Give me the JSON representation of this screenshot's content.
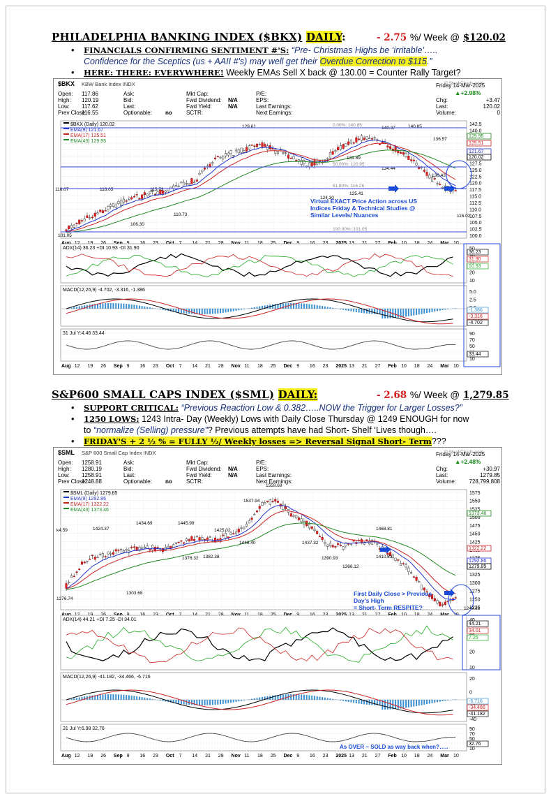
{
  "section1": {
    "title": "PHILADELPHIA BANKING INDEX ($BKX)",
    "title_tag": "DAILY",
    "title_colon": ":",
    "change": "- 2.75",
    "change_unit": "%/ Week @",
    "price": "$120.02",
    "bullets": [
      {
        "tag": "FINANCIALS CONFIRMING SENTIMENT #'S:",
        "text_pre": " ",
        "quote": "“Pre- Christmas Highs be ‘irritable’…..",
        "line2_pre": "Confidence for the Sceptics (us + AAII #'s) may well get their ",
        "line2_hl": "Overdue Correction to $115",
        "line2_post": ".”"
      },
      {
        "tag": "HERE: THERE: EVERYWHERE!",
        "text": " Weekly EMAs Sell X back @ 130.00 = Counter Rally Target?"
      }
    ],
    "chart": {
      "symbol": "$BKX",
      "name": "KBW Bank Index INDX",
      "date": "Friday 14-Mar-2025",
      "pct": "▲+2.98%",
      "stats_left": [
        [
          "Open:",
          "117.86"
        ],
        [
          "High:",
          "120.19"
        ],
        [
          "Low:",
          "117.62"
        ],
        [
          "Prev Close:",
          "116.55"
        ]
      ],
      "stats_mid_labels": [
        "Ask:",
        "Bid:",
        "Last:",
        "Optionable:"
      ],
      "optionable": "no",
      "stats_cap": [
        [
          "Mkt Cap:",
          ""
        ],
        [
          "Fwd Dividend:",
          "N/A"
        ],
        [
          "Fwd Yield:",
          "N/A"
        ],
        [
          "SCTR:",
          ""
        ]
      ],
      "stats_pe": [
        "P/E:",
        "EPS:",
        "Last Earnings:",
        "Next Earnings:"
      ],
      "stats_right": [
        [
          "Chg:",
          "+3.47"
        ],
        [
          "Last:",
          "120.02"
        ],
        [
          "Volume:",
          "0"
        ]
      ],
      "legend": [
        "$BKX (Daily) 120.02",
        "EMA(9) 121.67",
        "EMA(17) 125.51",
        "EMA(43) 129.95"
      ],
      "watermark": "© StockCharts.com",
      "price_axis": [
        "142.5",
        "140.0",
        "137.5",
        "135.0",
        "132.5",
        "130.0",
        "127.5",
        "125.0",
        "122.5",
        "120.0",
        "117.5",
        "115.0",
        "112.5",
        "110.0",
        "107.5",
        "105.0",
        "102.5",
        "100.0"
      ],
      "right_tags": [
        "129.95",
        "125.51",
        "121.67",
        "120.02"
      ],
      "peak_labels": [
        "129.61",
        "140.37",
        "140.85",
        "136.57",
        "131.89",
        "134.44",
        "130.43",
        "124.30",
        "125.41",
        "116.05",
        "115.73",
        "110.73",
        "106.30",
        "116.07",
        "101.05",
        "116.02"
      ],
      "fib": [
        "0.00%: 140.85",
        "50.00%: 120.95",
        "61.80%: 116.26",
        "100.00%: 101.05"
      ],
      "note": [
        "Virtual EXACT Price Action across US",
        "Indices Friday & Technical Studies @",
        "Similar Levels/ Nuances"
      ],
      "months": [
        "Aug",
        "12",
        "19",
        "26",
        "Sep",
        "9",
        "16",
        "23",
        "Oct",
        "7",
        "14",
        "21",
        "28",
        "Nov",
        "11",
        "18",
        "25",
        "Dec",
        "9",
        "16",
        "23",
        "2025",
        "13",
        "21",
        "27",
        "Feb",
        "10",
        "18",
        "24",
        "Mar",
        "10"
      ],
      "adx_label": "ADX(14) 36.23 +DI 10.93 -DI 31.90",
      "adx_axis": [
        "50",
        "40",
        "30",
        "20",
        "10"
      ],
      "adx_tags": [
        "36.23",
        "31.90",
        "10.93"
      ],
      "macd_label": "MACD(12,26,9) -4.702, -3.316, -1.386",
      "macd_axis": [
        "5.0",
        "2.5",
        "0.0",
        "-2.5",
        "-5.0"
      ],
      "macd_tags": [
        "-1.386",
        "-3.316",
        "-4.702"
      ],
      "rsi_label": "31 Jul Y:4.46 33.44",
      "rsi_axis": [
        "90",
        "70",
        "50",
        "30",
        "10"
      ],
      "rsi_tag": "33.44"
    }
  },
  "section2": {
    "title": "S&P600 SMALL CAPS INDEX ($SML)",
    "title_tag": "DAILY:",
    "change": "- 2.68",
    "change_unit": "%/ Week @",
    "price": "1,279.85",
    "bullets": [
      {
        "tag": "SUPPORT CRITICAL:",
        "quote": " “Previous Reaction Low & 0.382…..NOW the Trigger for Larger Losses?”"
      },
      {
        "tag": "1250 LOWS:",
        "text": " 1243 Intra- Day (Weekly) Lows with Daily Close Thursday @ 1249 ENOUGH for now",
        "line2_pre": "to ",
        "line2_q": "“normalize (Selling) pressure”",
        "line2_post": "? Previous attempts have had Short- Shelf ‘Lives though…."
      },
      {
        "tag": "FRIDAY'S + 2 ½ % = FULLY ½/ Weekly losses => Reversal Signal Short- Term",
        "text": "???"
      }
    ],
    "chart": {
      "symbol": "$SML",
      "name": "S&P 600 Small Cap Index INDX",
      "date": "Friday 14-Mar-2025",
      "pct": "▲+2.48%",
      "stats_left": [
        [
          "Open:",
          "1258.91"
        ],
        [
          "High:",
          "1280.19"
        ],
        [
          "Low:",
          "1258.91"
        ],
        [
          "Prev Close:",
          "1248.88"
        ]
      ],
      "stats_mid_labels": [
        "Ask:",
        "Bid:",
        "Last:",
        "Optionable:"
      ],
      "optionable": "no",
      "stats_cap": [
        [
          "Mkt Cap:",
          ""
        ],
        [
          "Fwd Dividend:",
          "N/A"
        ],
        [
          "Fwd Yield:",
          "N/A"
        ],
        [
          "SCTR:",
          ""
        ]
      ],
      "stats_pe": [
        "P/E:",
        "EPS:",
        "Last Earnings:",
        "Next Earnings:"
      ],
      "stats_right": [
        [
          "Chg:",
          "+30.97"
        ],
        [
          "Last:",
          "1279.85"
        ],
        [
          "Volume:",
          "728,799,808"
        ]
      ],
      "legend": [
        "$SML (Daily) 1279.85",
        "EMA(9) 1292.86",
        "EMA(17) 1322.22",
        "EMA(43) 1373.46"
      ],
      "watermark": "© StockCharts.com",
      "price_axis": [
        "1575",
        "1550",
        "1525",
        "1500",
        "1475",
        "1450",
        "1425",
        "1400",
        "1375",
        "1350",
        "1325",
        "1300",
        "1275",
        "1250",
        "1225"
      ],
      "right_tags": [
        "1373.46",
        "1322.22",
        "1292.86",
        "1279.85"
      ],
      "peak_labels": [
        "1537.94",
        "1559.69",
        "1424.37",
        "1434.69",
        "1445.99",
        "1425.02",
        "1446.40",
        "1437.32",
        "1468.81",
        "1410.83",
        "1390.93",
        "1366.12",
        "1376.32",
        "1382.38",
        "1303.68",
        "1276.74",
        "1249.21",
        "k4.59"
      ],
      "note": [
        "First Daily Close > Previous",
        "Day's High",
        "= Short- Term RESPITE?"
      ],
      "months": [
        "Aug",
        "12",
        "19",
        "26",
        "Sep",
        "9",
        "16",
        "23",
        "Oct",
        "7",
        "14",
        "21",
        "28",
        "Nov",
        "11",
        "18",
        "25",
        "Dec",
        "9",
        "16",
        "23",
        "2025",
        "13",
        "21",
        "27",
        "Feb",
        "10",
        "18",
        "24",
        "Mar",
        "10"
      ],
      "adx_label": "ADX(14) 44.21 +DI 7.25 -DI 34.01",
      "adx_axis": [
        "40",
        "30",
        "20",
        "10"
      ],
      "adx_tags": [
        "44.21",
        "34.01",
        "7.25"
      ],
      "macd_label": "MACD(12,26,9) -41.182, -34.466, -6.716",
      "macd_axis": [
        "20",
        "0",
        "-20",
        "-40"
      ],
      "macd_tags": [
        "-6.716",
        "-34.466",
        "-41.182"
      ],
      "rsi_label": "31 Jul Y:6.98 32.76",
      "rsi_axis": [
        "90",
        "70",
        "50",
        "30",
        "10"
      ],
      "rsi_tag": "32.76",
      "rsi_note": "As OVER ~ SOLD as way back when?….."
    }
  }
}
